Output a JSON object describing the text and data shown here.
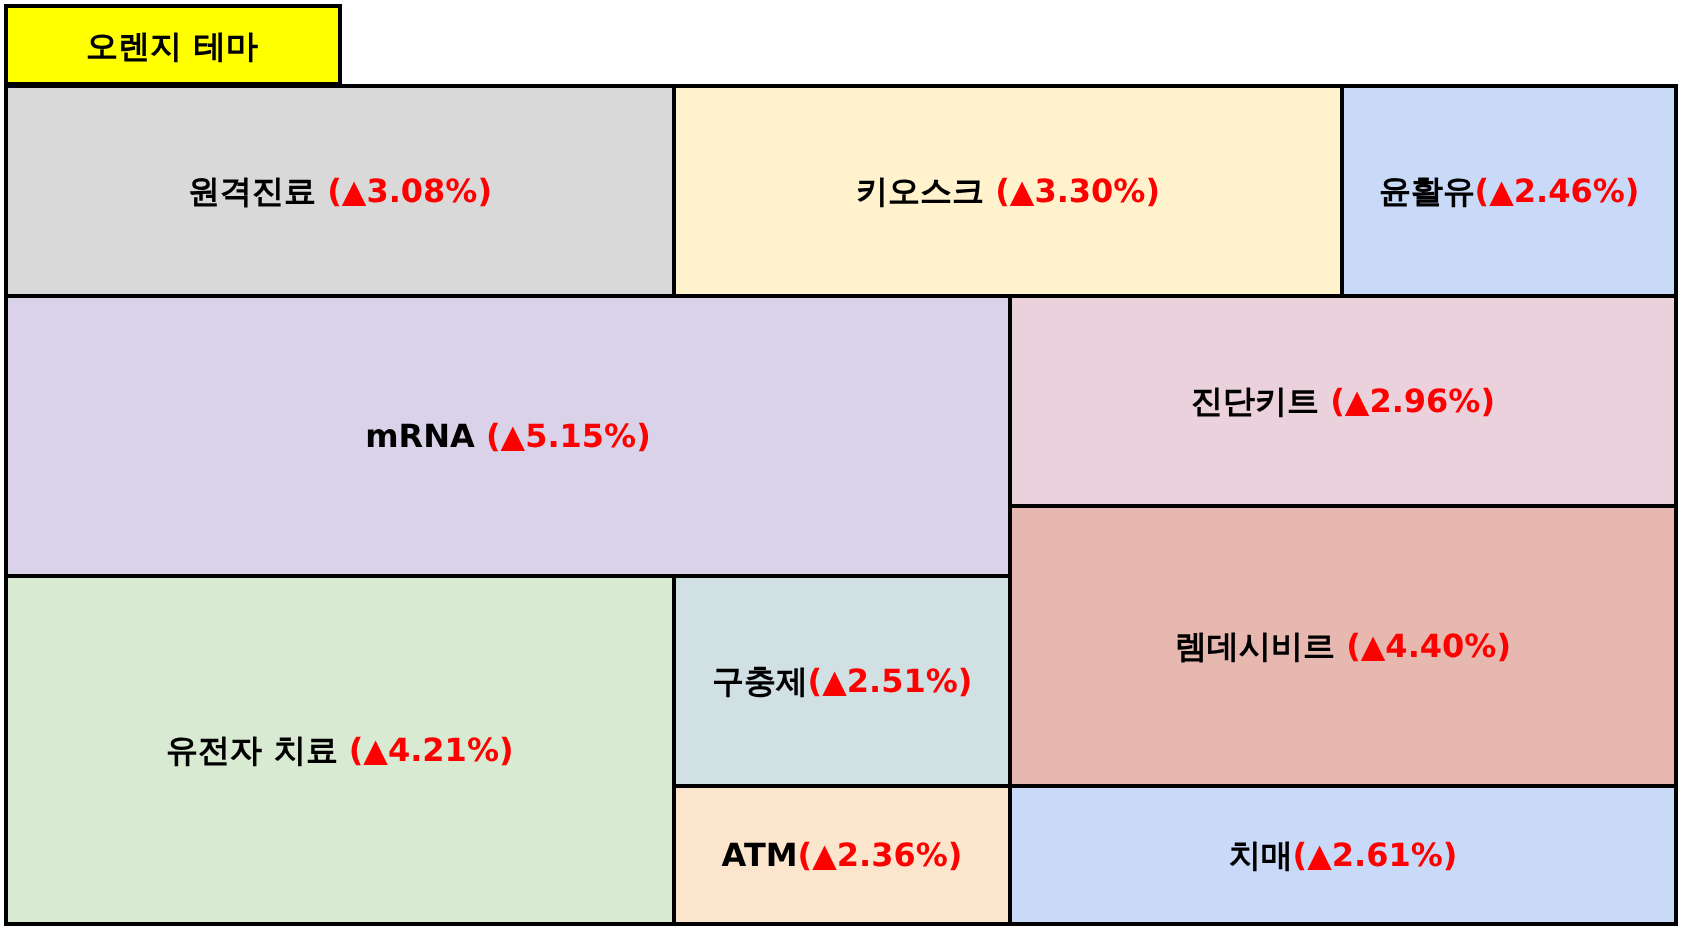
{
  "chart_data": {
    "type": "other",
    "title": "오렌지 테마",
    "categories": [
      "원격진료 ",
      "키오스크 ",
      "윤활유",
      "mRNA ",
      "진단키트 ",
      "렘데시비르 ",
      "유전자 치료 ",
      "구충제",
      "ATM",
      "치매"
    ],
    "values": [
      3.08,
      3.3,
      2.46,
      5.15,
      2.96,
      4.4,
      4.21,
      2.51,
      2.36,
      2.61
    ],
    "value_labels": [
      "(▲3.08%)",
      "(▲3.30%)",
      "(▲2.46%)",
      "(▲5.15%)",
      "(▲2.96%)",
      "(▲4.40%)",
      "(▲4.21%)",
      "(▲2.51%)",
      "(▲2.36%)",
      "(▲2.61%)"
    ],
    "colors": [
      "#d9d9d9",
      "#fff2cc",
      "#c9daf8",
      "#d9d2e9",
      "#ead1dc",
      "#e6b8af",
      "#d9ead3",
      "#d0e0e3",
      "#fce5cd",
      "#c9daf8"
    ]
  }
}
